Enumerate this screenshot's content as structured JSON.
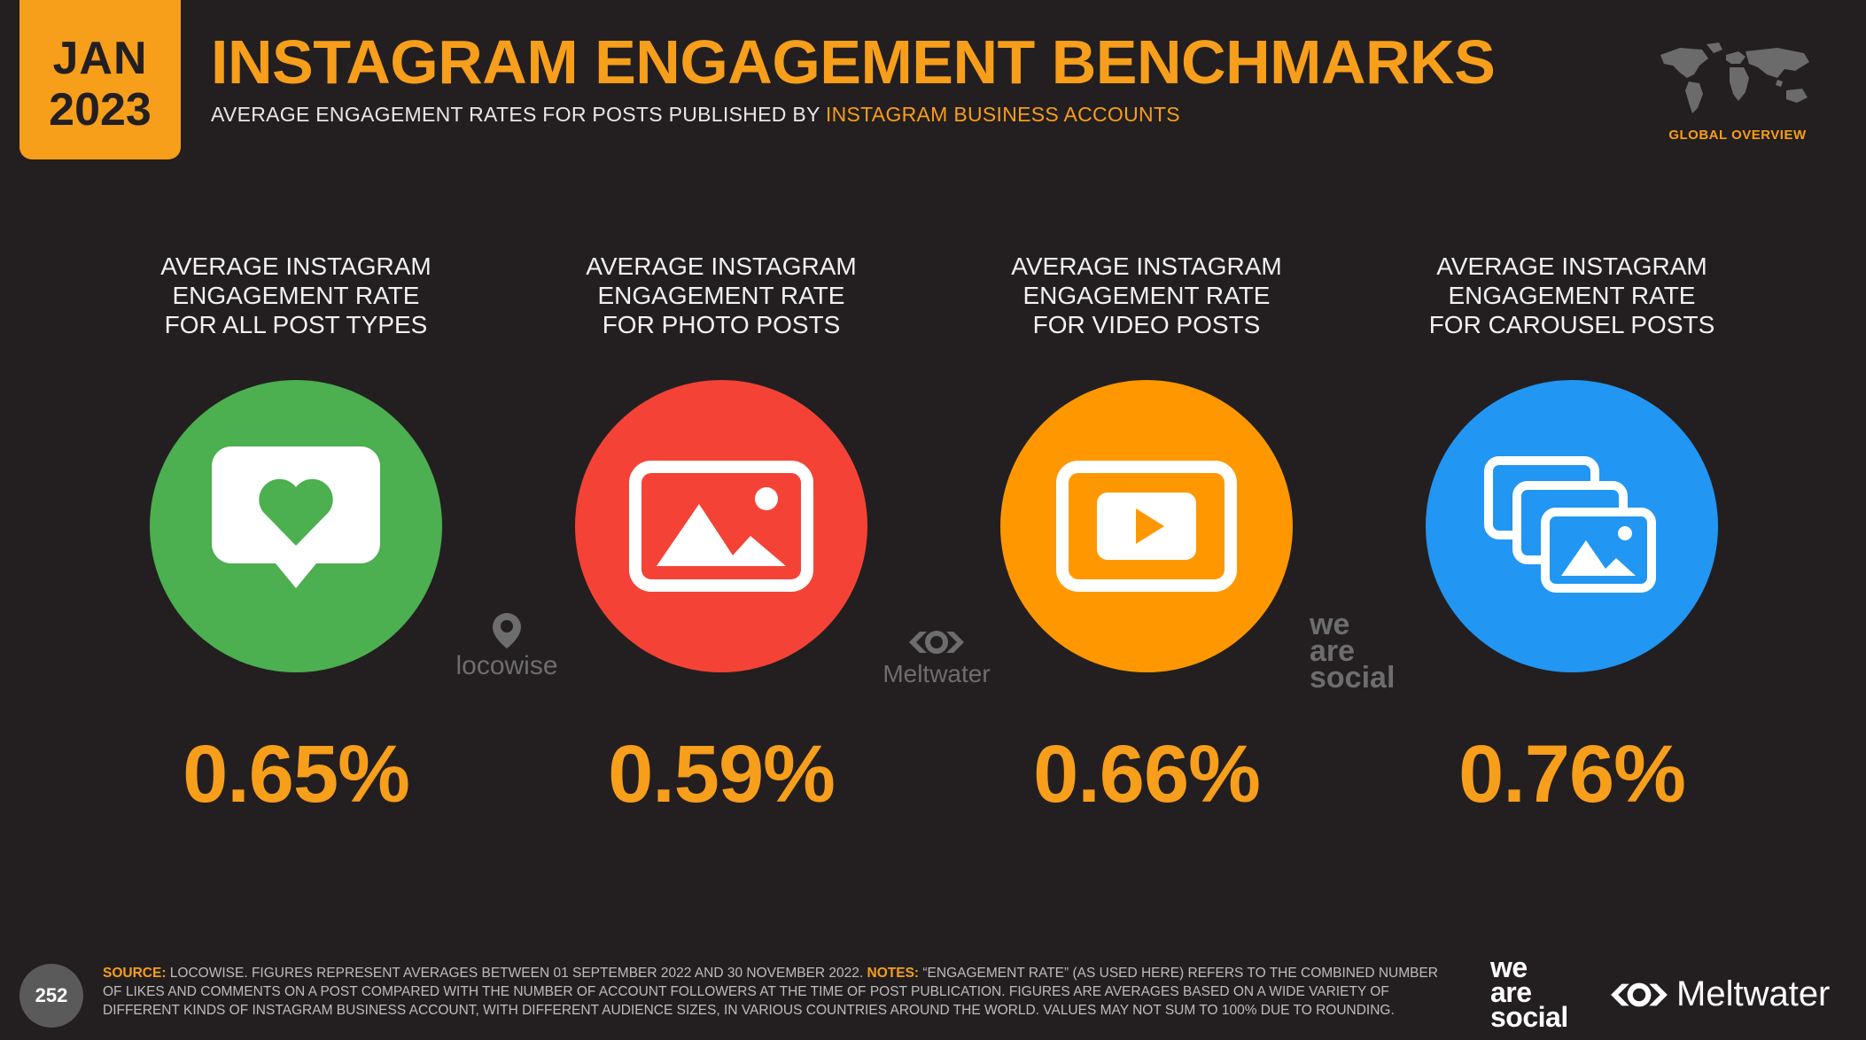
{
  "header": {
    "month": "JAN",
    "year": "2023",
    "title": "INSTAGRAM ENGAGEMENT BENCHMARKS",
    "subtitle_lead": "AVERAGE ENGAGEMENT RATES FOR POSTS PUBLISHED BY ",
    "subtitle_highlight": "INSTAGRAM BUSINESS ACCOUNTS",
    "region_label": "GLOBAL OVERVIEW"
  },
  "metrics": [
    {
      "label": "AVERAGE INSTAGRAM\nENGAGEMENT RATE\nFOR ALL POST TYPES",
      "value": "0.65%",
      "icon": "heart-bubble-icon",
      "color": "#4caf50"
    },
    {
      "label": "AVERAGE INSTAGRAM\nENGAGEMENT RATE\nFOR PHOTO POSTS",
      "value": "0.59%",
      "icon": "photo-icon",
      "color": "#f44336"
    },
    {
      "label": "AVERAGE INSTAGRAM\nENGAGEMENT RATE\nFOR VIDEO POSTS",
      "value": "0.66%",
      "icon": "video-icon",
      "color": "#ff9800"
    },
    {
      "label": "AVERAGE INSTAGRAM\nENGAGEMENT RATE\nFOR CAROUSEL POSTS",
      "value": "0.76%",
      "icon": "carousel-icon",
      "color": "#2196f3"
    }
  ],
  "partner_logos": {
    "locowise": "locowise",
    "meltwater": "Meltwater",
    "wearesocial_1": "we",
    "wearesocial_2": "are",
    "wearesocial_3": "social"
  },
  "footer": {
    "page_number": "252",
    "source_key": "SOURCE:",
    "source_text": " LOCOWISE. FIGURES REPRESENT AVERAGES BETWEEN 01 SEPTEMBER 2022 AND 30 NOVEMBER 2022. ",
    "notes_key": "NOTES:",
    "notes_text": " “ENGAGEMENT RATE” (AS USED HERE) REFERS TO THE COMBINED NUMBER OF LIKES AND COMMENTS ON A POST COMPARED WITH THE NUMBER OF ACCOUNT FOLLOWERS AT THE TIME OF POST PUBLICATION. FIGURES ARE AVERAGES BASED ON A WIDE VARIETY OF DIFFERENT KINDS OF INSTAGRAM BUSINESS ACCOUNT, WITH DIFFERENT AUDIENCE SIZES, IN VARIOUS COUNTRIES AROUND THE WORLD. VALUES MAY NOT SUM TO 100% DUE TO ROUNDING.",
    "brand_we": "we",
    "brand_are": "are",
    "brand_social": "social",
    "brand_meltwater": "Meltwater"
  }
}
